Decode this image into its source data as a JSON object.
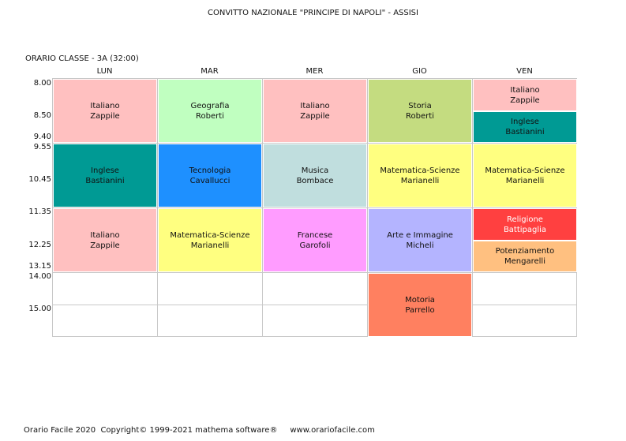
{
  "header": {
    "title": "CONVITTO NAZIONALE \"PRINCIPE DI NAPOLI\" - ASSISI",
    "subtitle": "ORARIO CLASSE   -  3A  (32:00)"
  },
  "days": [
    "LUN",
    "MAR",
    "MER",
    "GIO",
    "VEN"
  ],
  "times": [
    "8.00",
    "8.50",
    "9.40",
    "9.55",
    "10.45",
    "11.35",
    "12.25",
    "13.15",
    "14.00",
    "15.00"
  ],
  "colors": {
    "pink": "#ffc0c0",
    "light_green": "#c0ffc0",
    "olive_green": "#c4dc80",
    "teal": "#009a94",
    "blue": "#1e90ff",
    "light_cyan": "#c0dede",
    "yellow": "#ffff80",
    "magenta": "#ff9cff",
    "lavender": "#b4b4ff",
    "red": "#ff4040",
    "orange": "#ffc080",
    "salmon": "#ff8060",
    "grid": "#c8c8c8"
  },
  "lessons": [
    {
      "subject": "Italiano",
      "teacher": "Zappile",
      "color": "#ffc0c0"
    },
    {
      "subject": "Inglese",
      "teacher": "Bastianini",
      "color": "#009a94"
    },
    {
      "subject": "Italiano",
      "teacher": "Zappile",
      "color": "#ffc0c0"
    },
    {
      "subject": "Geografia",
      "teacher": "Roberti",
      "color": "#c0ffc0"
    },
    {
      "subject": "Tecnologia",
      "teacher": "Cavallucci",
      "color": "#1e90ff"
    },
    {
      "subject": "Matematica-Scienze",
      "teacher": "Marianelli",
      "color": "#ffff80"
    },
    {
      "subject": "Italiano",
      "teacher": "Zappile",
      "color": "#ffc0c0"
    },
    {
      "subject": "Musica",
      "teacher": "Bombace",
      "color": "#c0dede"
    },
    {
      "subject": "Francese",
      "teacher": "Garofoli",
      "color": "#ff9cff"
    },
    {
      "subject": "Storia",
      "teacher": "Roberti",
      "color": "#c4dc80"
    },
    {
      "subject": "Matematica-Scienze",
      "teacher": "Marianelli",
      "color": "#ffff80"
    },
    {
      "subject": "Arte e Immagine",
      "teacher": "Micheli",
      "color": "#b4b4ff"
    },
    {
      "subject": "Motoria",
      "teacher": "Parrello",
      "color": "#ff8060"
    },
    {
      "subject": "Italiano",
      "teacher": "Zappile",
      "color": "#ffc0c0"
    },
    {
      "subject": "Inglese",
      "teacher": "Bastianini",
      "color": "#009a94"
    },
    {
      "subject": "Matematica-Scienze",
      "teacher": "Marianelli",
      "color": "#ffff80"
    },
    {
      "subject": "Religione",
      "teacher": "Battipaglia",
      "color": "#ff4040",
      "text_color": "#ffffff"
    },
    {
      "subject": "Potenziamento",
      "teacher": "Mengarelli",
      "color": "#ffc080"
    }
  ],
  "footer": {
    "text": "Orario Facile 2020  Copyright© 1999-2021 mathema software®     www.orariofacile.com"
  }
}
